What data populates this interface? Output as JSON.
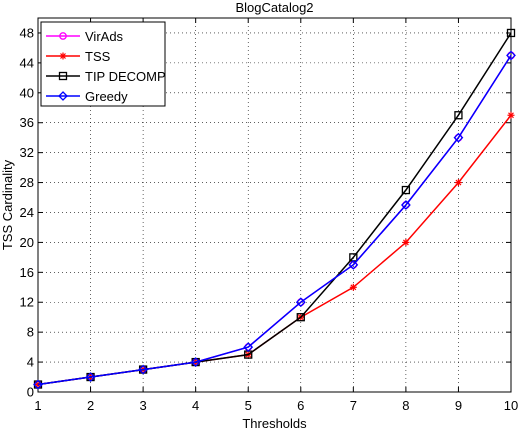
{
  "chart_data": {
    "type": "line",
    "title": "BlogCatalog2",
    "xlabel": "Thresholds",
    "ylabel": "TSS Cardinality",
    "x": [
      1,
      2,
      3,
      4,
      5,
      6,
      7,
      8,
      9,
      10
    ],
    "xlim": [
      1,
      10
    ],
    "ylim": [
      0,
      50
    ],
    "xticks": [
      "1",
      "2",
      "3",
      "4",
      "5",
      "6",
      "7",
      "8",
      "9",
      "10"
    ],
    "yticks": [
      "0",
      "4",
      "8",
      "12",
      "16",
      "20",
      "24",
      "28",
      "32",
      "36",
      "40",
      "44",
      "48"
    ],
    "grid": true,
    "legend_position": "top-left",
    "series": [
      {
        "name": "VirAds",
        "color": "#ff00ff",
        "marker": "circle",
        "values": [
          1,
          2,
          3,
          4,
          6,
          12,
          17,
          25,
          34,
          45
        ]
      },
      {
        "name": "TSS",
        "color": "#ff0000",
        "marker": "star",
        "values": [
          1,
          2,
          3,
          4,
          5,
          10,
          14,
          20,
          28,
          37
        ]
      },
      {
        "name": "TIP DECOMP",
        "color": "#000000",
        "marker": "square",
        "values": [
          1,
          2,
          3,
          4,
          5,
          10,
          18,
          27,
          37,
          48
        ]
      },
      {
        "name": "Greedy",
        "color": "#0000ff",
        "marker": "diamond",
        "values": [
          1,
          2,
          3,
          4,
          6,
          12,
          17,
          25,
          34,
          45
        ]
      }
    ]
  }
}
